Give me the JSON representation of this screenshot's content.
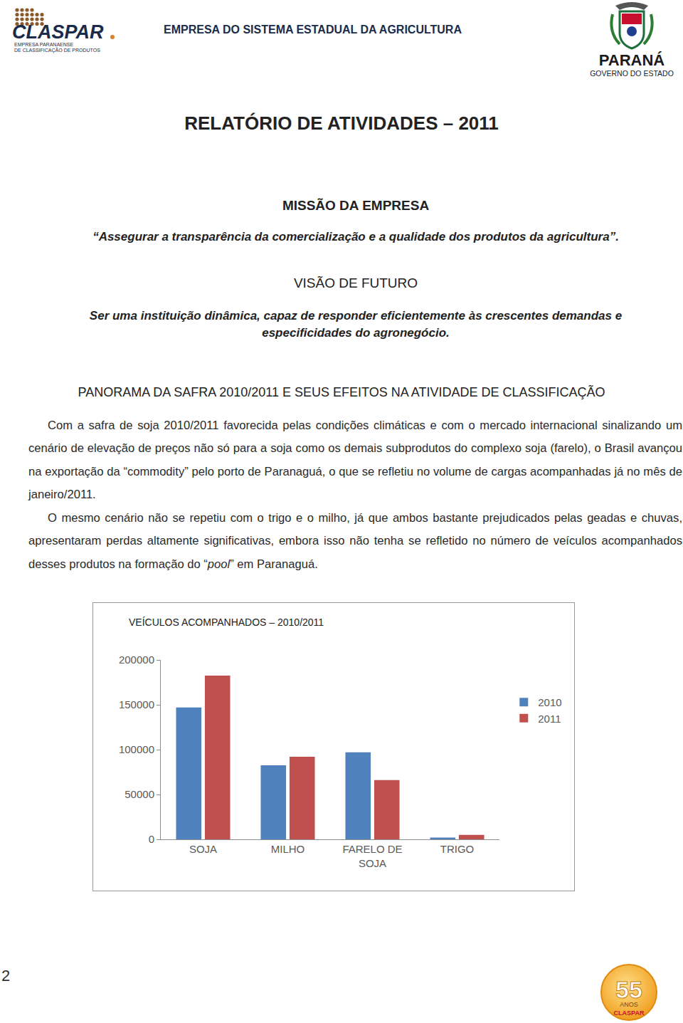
{
  "header": {
    "logo": {
      "name": "CLASPAR",
      "subtitle": [
        "EMPRESA PARANAENSE",
        "DE CLASSIFICAÇÃO DE PRODUTOS"
      ]
    },
    "tagline": "EMPRESA DO SISTEMA ESTADUAL DA AGRICULTURA",
    "state_logo": {
      "name": "PARANÁ",
      "subtitle": "GOVERNO DO ESTADO"
    }
  },
  "title": "RELATÓRIO DE ATIVIDADES – 2011",
  "mission": {
    "heading": "MISSÃO DA EMPRESA",
    "text": "“Assegurar a transparência da comercialização e a qualidade dos produtos da agricultura”."
  },
  "vision": {
    "heading": "VISÃO DE FUTURO",
    "text": "Ser uma instituição dinâmica, capaz de responder eficientemente às crescentes demandas e especificidades do agronegócio."
  },
  "panorama": {
    "heading": "PANORAMA DA SAFRA 2010/2011 E SEUS EFEITOS NA ATIVIDADE DE CLASSIFICAÇÃO",
    "paragraphs": [
      [
        {
          "text": "Com a safra de soja 2010/2011 favorecida pelas condições climáticas e com o mercado internacional sinalizando um cenário de elevação de preços não só para a soja como os demais subprodutos do complexo soja (farelo), o Brasil avançou na exportação da “commodity” pelo porto de Paranaguá, o que se refletiu no volume de cargas acompanhadas já no mês de janeiro/2011."
        }
      ],
      [
        {
          "text": "O mesmo cenário não se repetiu com o trigo e o milho, já que ambos bastante prejudicados pelas geadas e chuvas, apresentaram perdas altamente significativas, embora isso não tenha se refletido no número de veículos acompanhados desses produtos na formação do “"
        },
        {
          "text": "pool",
          "italic": true
        },
        {
          "text": "” em Paranaguá."
        }
      ]
    ]
  },
  "chart_data": {
    "type": "bar",
    "title": "VEÍCULOS ACOMPANHADOS – 2010/2011",
    "categories": [
      "SOJA",
      "MILHO",
      "FARELO DE SOJA",
      "TRIGO"
    ],
    "series": [
      {
        "name": "2010",
        "color": "#4f81bd",
        "values": [
          147000,
          82500,
          97000,
          2000
        ]
      },
      {
        "name": "2011",
        "color": "#c0504d",
        "values": [
          182500,
          92000,
          66000,
          5000
        ]
      }
    ],
    "ylim": [
      0,
      200000
    ],
    "yticks": [
      0,
      50000,
      100000,
      150000,
      200000
    ],
    "grid": false,
    "legend": "right"
  },
  "footer": {
    "page": "2",
    "badge": {
      "number": "55",
      "word": "ANOS",
      "name": "CLASPAR"
    }
  }
}
